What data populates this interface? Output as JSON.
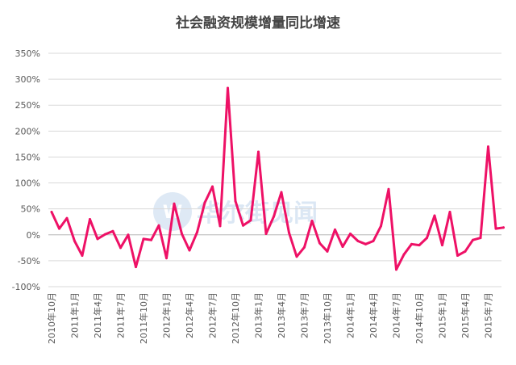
{
  "chart_data": {
    "type": "line",
    "title": "社会融资规模增量同比增速",
    "xlabel": "",
    "ylabel": "",
    "ylim": [
      -100,
      350
    ],
    "y_ticks": [
      "-100%",
      "-50%",
      "0%",
      "50%",
      "100%",
      "150%",
      "200%",
      "250%",
      "300%",
      "350%"
    ],
    "y_tick_values": [
      -100,
      -50,
      0,
      50,
      100,
      150,
      200,
      250,
      300,
      350
    ],
    "grid": true,
    "legend": "none",
    "color": "#ee1166",
    "x_ticks": [
      "2010年10月",
      "2011年1月",
      "2011年4月",
      "2011年7月",
      "2011年10月",
      "2012年1月",
      "2012年4月",
      "2012年7月",
      "2012年10月",
      "2013年1月",
      "2013年4月",
      "2013年7月",
      "2013年10月",
      "2014年1月",
      "2014年4月",
      "2014年7月",
      "2014年10月",
      "2015年1月",
      "2015年4月",
      "2015年7月"
    ],
    "series": [
      {
        "name": "",
        "values": [
          44,
          12,
          32,
          -12,
          -40,
          30,
          -8,
          1,
          7,
          -25,
          0,
          -62,
          -8,
          -10,
          18,
          -45,
          60,
          2,
          -30,
          5,
          62,
          93,
          17,
          283,
          65,
          18,
          28,
          160,
          2,
          35,
          82,
          4,
          -42,
          -24,
          27,
          -16,
          -32,
          10,
          -23,
          2,
          -12,
          -18,
          -12,
          17,
          88,
          -67,
          -38,
          -18,
          -20,
          -6,
          37,
          -20,
          44,
          -40,
          -32,
          -10,
          -6,
          170,
          12,
          14
        ]
      }
    ]
  },
  "watermark": {
    "text": "华尔街见闻",
    "logo": "W",
    "color": "#d3e2f2"
  }
}
